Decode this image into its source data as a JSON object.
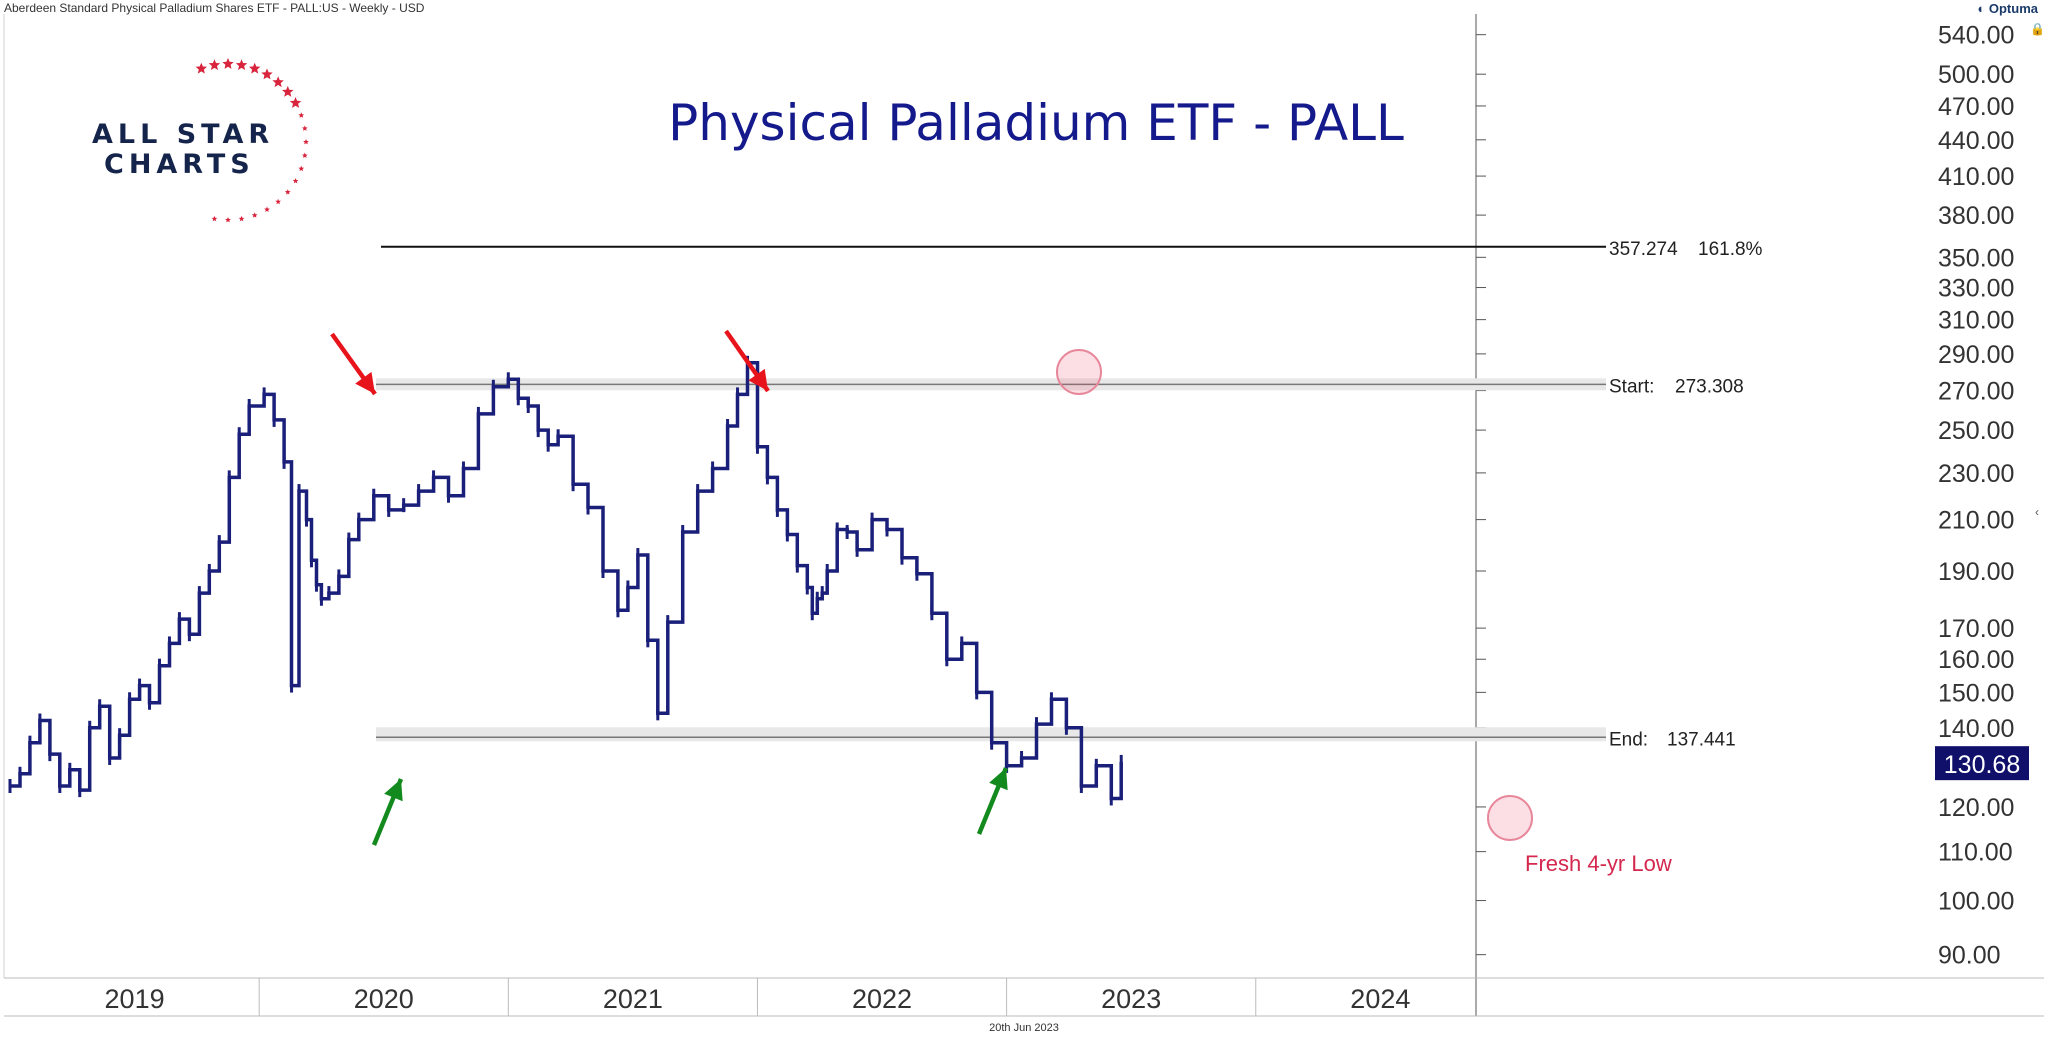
{
  "header": {
    "instrument": "Aberdeen Standard Physical Palladium Shares ETF - PALL:US - Weekly - USD",
    "brand": "Optuma"
  },
  "logo": {
    "line1": "ALL STAR",
    "line2": "CHARTS"
  },
  "footer": {
    "date": "20th Jun 2023"
  },
  "colors": {
    "price": "#1a1f7a",
    "title": "#141a8c",
    "red_arrow": "#e8141c",
    "green_arrow": "#138a1d",
    "annotation": "#d4284e",
    "star": "#d8243c"
  },
  "chart_data": {
    "type": "line",
    "title": "Physical Palladium ETF - PALL",
    "y_scale": "log",
    "ylim": [
      86,
      560
    ],
    "xlim": [
      2019.0,
      2024.9
    ],
    "y_ticks": [
      "540.00",
      "500.00",
      "470.00",
      "440.00",
      "410.00",
      "380.00",
      "350.00",
      "330.00",
      "310.00",
      "290.00",
      "270.00",
      "250.00",
      "230.00",
      "210.00",
      "190.00",
      "170.00",
      "160.00",
      "150.00",
      "140.00",
      "120.00",
      "110.00",
      "100.00",
      "90.00"
    ],
    "x_ticks": [
      "2019",
      "2020",
      "2021",
      "2022",
      "2023",
      "2024"
    ],
    "last_price": "130.68",
    "series": [
      {
        "values_x": [
          2019.0,
          2019.04,
          2019.08,
          2019.12,
          2019.16,
          2019.2,
          2019.24,
          2019.28,
          2019.32,
          2019.36,
          2019.4,
          2019.44,
          2019.48,
          2019.52,
          2019.56,
          2019.6,
          2019.64,
          2019.68,
          2019.72,
          2019.76,
          2019.8,
          2019.84,
          2019.88,
          2019.92,
          2019.96,
          2020.02,
          2020.06,
          2020.1,
          2020.13,
          2020.16,
          2020.19,
          2020.21,
          2020.23,
          2020.25,
          2020.28,
          2020.32,
          2020.36,
          2020.4,
          2020.46,
          2020.52,
          2020.58,
          2020.64,
          2020.7,
          2020.76,
          2020.82,
          2020.88,
          2020.94,
          2021.0,
          2021.04,
          2021.08,
          2021.12,
          2021.16,
          2021.2,
          2021.26,
          2021.32,
          2021.38,
          2021.44,
          2021.48,
          2021.52,
          2021.56,
          2021.6,
          2021.64,
          2021.7,
          2021.76,
          2021.82,
          2021.88,
          2021.92,
          2021.96,
          2022.0,
          2022.04,
          2022.08,
          2022.12,
          2022.16,
          2022.2,
          2022.22,
          2022.24,
          2022.26,
          2022.28,
          2022.32,
          2022.36,
          2022.4,
          2022.46,
          2022.52,
          2022.58,
          2022.64,
          2022.7,
          2022.76,
          2022.82,
          2022.88,
          2022.94,
          2023.0,
          2023.06,
          2023.12,
          2023.18,
          2023.24,
          2023.3,
          2023.36,
          2023.42,
          2023.46
        ],
        "values_y": [
          125,
          128,
          136,
          142,
          133,
          125,
          129,
          124,
          140,
          146,
          132,
          138,
          148,
          152,
          147,
          158,
          165,
          173,
          168,
          182,
          190,
          201,
          228,
          248,
          262,
          268,
          255,
          235,
          152,
          222,
          210,
          194,
          185,
          180,
          182,
          188,
          202,
          210,
          220,
          214,
          216,
          222,
          228,
          220,
          232,
          258,
          272,
          276,
          266,
          262,
          250,
          243,
          247,
          225,
          215,
          190,
          176,
          184,
          196,
          166,
          144,
          172,
          205,
          222,
          232,
          252,
          268,
          285,
          242,
          228,
          214,
          204,
          192,
          184,
          175,
          180,
          182,
          190,
          206,
          205,
          198,
          210,
          206,
          195,
          189,
          175,
          160,
          165,
          150,
          136,
          130,
          132,
          141,
          148,
          140,
          125,
          130,
          122,
          131
        ]
      }
    ],
    "fib_level": {
      "value": 357.274,
      "label_value": "357.274",
      "label_pct": "161.8%"
    },
    "start_level": {
      "value": 273.308,
      "label": "Start:",
      "label_value": "273.308"
    },
    "end_level": {
      "value": 137.441,
      "label": "End:",
      "label_value": "137.441"
    },
    "annotation": "Fresh 4-yr Low"
  }
}
